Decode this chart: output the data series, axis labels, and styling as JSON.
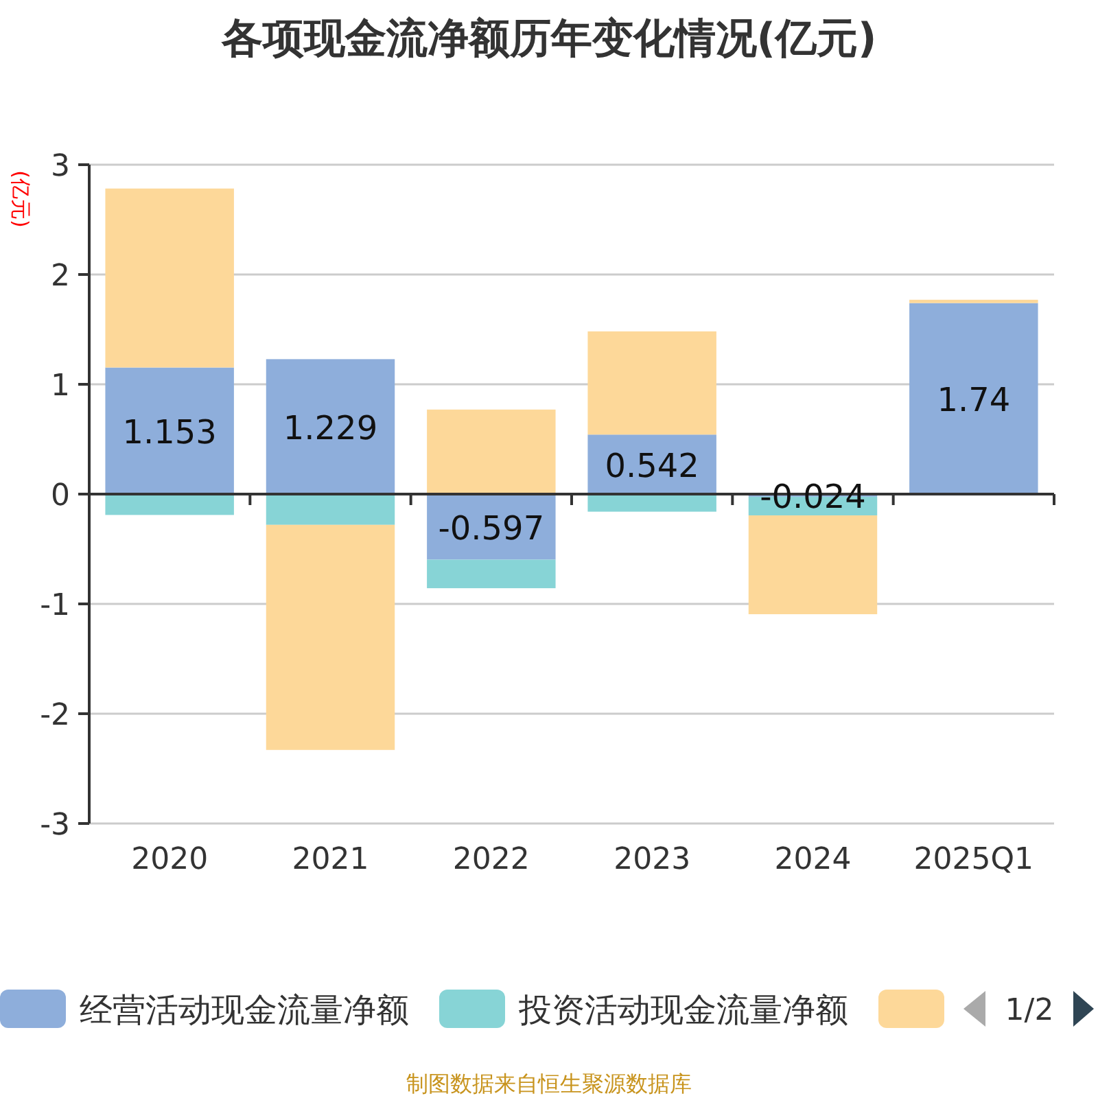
{
  "chart_data": {
    "type": "bar",
    "title": "各项现金流净额历年变化情况(亿元)",
    "ylabel": "(亿元)",
    "categories": [
      "2020",
      "2021",
      "2022",
      "2023",
      "2024",
      "2025Q1"
    ],
    "stacked": true,
    "ylim": [
      -3,
      3
    ],
    "yticks": [
      -3,
      -2,
      -1,
      0,
      1,
      2,
      3
    ],
    "grid": "y",
    "legend": "bottom",
    "series": [
      {
        "name": "经营活动现金流量净额",
        "color": "#8eaedb",
        "values": [
          1.153,
          1.229,
          -0.597,
          0.542,
          -0.024,
          1.74
        ],
        "value_labels": [
          "1.153",
          "1.229",
          "-0.597",
          "0.542",
          "-0.024",
          "1.74"
        ]
      },
      {
        "name": "投资活动现金流量净额",
        "color": "#87d4d6",
        "values": [
          -0.19,
          -0.28,
          -0.26,
          -0.16,
          -0.17,
          -0.01
        ]
      },
      {
        "color": "#fdd899",
        "values": [
          1.63,
          -2.05,
          0.77,
          0.94,
          -0.9,
          0.03
        ]
      }
    ],
    "annotations": [
      "1/2",
      "制图数据来自恒生聚源数据库"
    ]
  }
}
